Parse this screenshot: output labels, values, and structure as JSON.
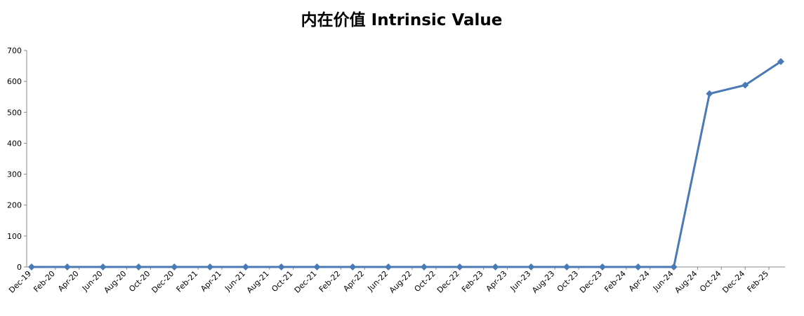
{
  "chart_data": {
    "type": "line",
    "title": "内在价值 Intrinsic Value",
    "x": [
      "2019-12",
      "2020-03",
      "2020-06",
      "2020-09",
      "2020-12",
      "2021-03",
      "2021-06",
      "2021-09",
      "2021-12",
      "2022-03",
      "2022-06",
      "2022-09",
      "2022-12",
      "2023-03",
      "2023-06",
      "2023-09",
      "2023-12",
      "2024-03",
      "2024-06",
      "2024-09",
      "2024-12",
      "2025-03"
    ],
    "series": [
      {
        "name": "Intrinsic Value",
        "color": "#4a7ab5",
        "values": [
          0,
          0,
          0,
          0,
          0,
          0,
          0,
          0,
          0,
          0,
          0,
          0,
          0,
          0,
          0,
          0,
          0,
          0,
          0,
          560,
          588,
          664
        ]
      }
    ],
    "xlim": [
      "2019-12",
      "2025-03"
    ],
    "xticks": [
      {
        "value": "2019-12",
        "label": "Dec-19"
      },
      {
        "value": "2020-02",
        "label": "Feb-20"
      },
      {
        "value": "2020-04",
        "label": "Apr-20"
      },
      {
        "value": "2020-06",
        "label": "Jun-20"
      },
      {
        "value": "2020-08",
        "label": "Aug-20"
      },
      {
        "value": "2020-10",
        "label": "Oct-20"
      },
      {
        "value": "2020-12",
        "label": "Dec-20"
      },
      {
        "value": "2021-02",
        "label": "Feb-21"
      },
      {
        "value": "2021-04",
        "label": "Apr-21"
      },
      {
        "value": "2021-06",
        "label": "Jun-21"
      },
      {
        "value": "2021-08",
        "label": "Aug-21"
      },
      {
        "value": "2021-10",
        "label": "Oct-21"
      },
      {
        "value": "2021-12",
        "label": "Dec-21"
      },
      {
        "value": "2022-02",
        "label": "Feb-22"
      },
      {
        "value": "2022-04",
        "label": "Apr-22"
      },
      {
        "value": "2022-06",
        "label": "Jun-22"
      },
      {
        "value": "2022-08",
        "label": "Aug-22"
      },
      {
        "value": "2022-10",
        "label": "Oct-22"
      },
      {
        "value": "2022-12",
        "label": "Dec-22"
      },
      {
        "value": "2023-02",
        "label": "Feb-23"
      },
      {
        "value": "2023-04",
        "label": "Apr-23"
      },
      {
        "value": "2023-06",
        "label": "Jun-23"
      },
      {
        "value": "2023-08",
        "label": "Aug-23"
      },
      {
        "value": "2023-10",
        "label": "Oct-23"
      },
      {
        "value": "2023-12",
        "label": "Dec-23"
      },
      {
        "value": "2024-02",
        "label": "Feb-24"
      },
      {
        "value": "2024-04",
        "label": "Apr-24"
      },
      {
        "value": "2024-06",
        "label": "Jun-24"
      },
      {
        "value": "2024-08",
        "label": "Aug-24"
      },
      {
        "value": "2024-10",
        "label": "Oct-24"
      },
      {
        "value": "2024-12",
        "label": "Dec-24"
      },
      {
        "value": "2025-02",
        "label": "Feb-25"
      }
    ],
    "ylim": [
      0,
      700
    ],
    "yticks": [
      0,
      100,
      200,
      300,
      400,
      500,
      600,
      700
    ],
    "grid": false
  }
}
